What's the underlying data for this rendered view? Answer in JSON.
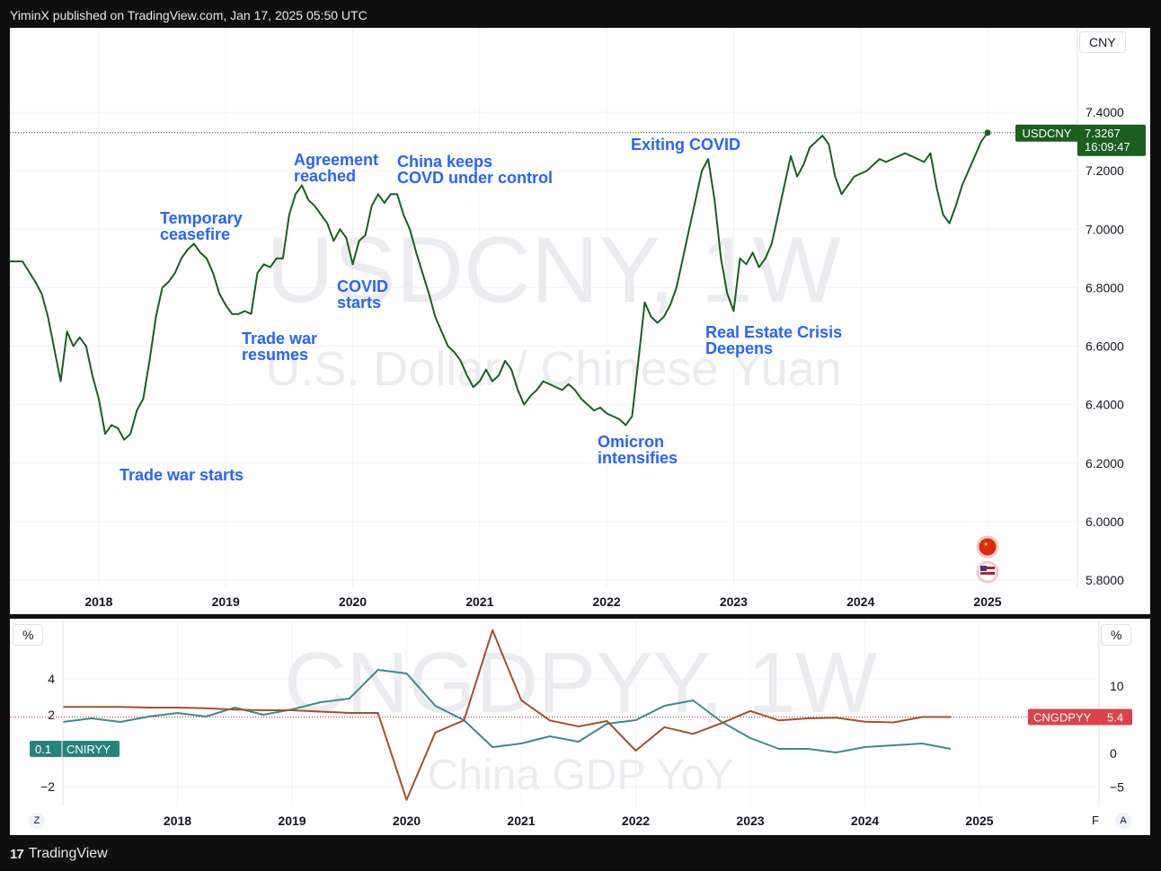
{
  "header": {
    "text": "YiminX published on TradingView.com, Jan 17, 2025 05:50 UTC"
  },
  "footer": {
    "brand": "TradingView",
    "logo_glyph": "17"
  },
  "colors": {
    "usdcny": "#1b5e20",
    "gdp": "#a0522d",
    "cpi": "#3d8a8a",
    "annotation": "#2962ff",
    "grid": "#f0f3fa",
    "watermark": "#d1d4dc"
  },
  "main_chart": {
    "watermark_symbol": "USDCNY, 1W",
    "watermark_desc": "U.S. Dollar / Chinese Yuan",
    "unit_label": "CNY",
    "last_value_label": "USDCNY",
    "last_value": "7.3267",
    "countdown": "16:09:47",
    "y_tick_labels": [
      "7.4000",
      "7.2000",
      "7.0000",
      "6.8000",
      "6.6000",
      "6.4000",
      "6.2000",
      "6.0000",
      "5.8000"
    ],
    "x_tick_labels": [
      "2018",
      "2019",
      "2020",
      "2021",
      "2022",
      "2023",
      "2024",
      "2025"
    ],
    "annotations": [
      [
        "Trade war starts"
      ],
      [
        "Temporary",
        "ceasefire"
      ],
      [
        "Trade war",
        "resumes"
      ],
      [
        "Agreement",
        "reached"
      ],
      [
        "COVID",
        "starts"
      ],
      [
        "China keeps",
        "COVD under control"
      ],
      [
        "Omicron",
        "intensifies"
      ],
      [
        "Exiting COVID"
      ],
      [
        "Real Estate Crisis",
        "Deepens"
      ]
    ],
    "flags": [
      "china-flag-icon",
      "us-flag-icon"
    ]
  },
  "gdp_chart": {
    "watermark_symbol": "CNGDPYY, 1W",
    "watermark_desc": "China GDP YoY",
    "unit_label_left": "%",
    "unit_label_right": "%",
    "left_tick_labels": [
      "4",
      "2",
      "−2"
    ],
    "right_tick_labels": [
      "10",
      "0",
      "−5"
    ],
    "x_tick_labels": [
      "2018",
      "2019",
      "2020",
      "2021",
      "2022",
      "2023",
      "2024",
      "2025"
    ],
    "cpi_label": "CNIRYY",
    "cpi_value": "0.1",
    "gdp_label": "CNGDPYY",
    "gdp_value": "5.4",
    "corner_left": "Z",
    "corner_right": "A",
    "corner_cut": "F"
  },
  "chart_data": [
    {
      "type": "line",
      "title": "USDCNY, 1W",
      "ylabel": "CNY",
      "ylim": [
        5.78,
        7.66
      ],
      "series": [
        {
          "name": "USDCNY",
          "x": [
            2017.3,
            2017.4,
            2017.5,
            2017.55,
            2017.6,
            2017.7,
            2017.75,
            2017.8,
            2017.85,
            2017.9,
            2017.95,
            2018.0,
            2018.05,
            2018.1,
            2018.15,
            2018.2,
            2018.25,
            2018.3,
            2018.35,
            2018.4,
            2018.45,
            2018.5,
            2018.55,
            2018.6,
            2018.65,
            2018.7,
            2018.75,
            2018.8,
            2018.85,
            2018.9,
            2018.95,
            2019.0,
            2019.05,
            2019.1,
            2019.15,
            2019.2,
            2019.25,
            2019.3,
            2019.35,
            2019.4,
            2019.45,
            2019.5,
            2019.55,
            2019.6,
            2019.65,
            2019.7,
            2019.75,
            2019.8,
            2019.85,
            2019.9,
            2019.95,
            2020.0,
            2020.05,
            2020.1,
            2020.15,
            2020.2,
            2020.25,
            2020.3,
            2020.35,
            2020.4,
            2020.45,
            2020.5,
            2020.55,
            2020.6,
            2020.65,
            2020.7,
            2020.75,
            2020.8,
            2020.85,
            2020.9,
            2020.95,
            2021.0,
            2021.05,
            2021.1,
            2021.15,
            2021.2,
            2021.25,
            2021.3,
            2021.35,
            2021.4,
            2021.45,
            2021.5,
            2021.55,
            2021.6,
            2021.65,
            2021.7,
            2021.75,
            2021.8,
            2021.85,
            2021.9,
            2021.95,
            2022.0,
            2022.05,
            2022.1,
            2022.15,
            2022.2,
            2022.25,
            2022.3,
            2022.35,
            2022.4,
            2022.45,
            2022.5,
            2022.55,
            2022.6,
            2022.65,
            2022.7,
            2022.75,
            2022.8,
            2022.85,
            2022.9,
            2022.95,
            2023.0,
            2023.05,
            2023.1,
            2023.15,
            2023.2,
            2023.25,
            2023.3,
            2023.35,
            2023.4,
            2023.45,
            2023.5,
            2023.55,
            2023.6,
            2023.65,
            2023.7,
            2023.75,
            2023.8,
            2023.85,
            2023.9,
            2023.95,
            2024.0,
            2024.05,
            2024.1,
            2024.15,
            2024.2,
            2024.25,
            2024.3,
            2024.35,
            2024.4,
            2024.45,
            2024.5,
            2024.55,
            2024.6,
            2024.65,
            2024.7,
            2024.75,
            2024.8,
            2024.85,
            2024.9,
            2024.95,
            2025.0
          ],
          "values": [
            6.89,
            6.89,
            6.82,
            6.78,
            6.7,
            6.48,
            6.65,
            6.6,
            6.63,
            6.6,
            6.5,
            6.42,
            6.3,
            6.33,
            6.32,
            6.28,
            6.3,
            6.38,
            6.42,
            6.55,
            6.7,
            6.8,
            6.82,
            6.85,
            6.9,
            6.93,
            6.95,
            6.92,
            6.9,
            6.85,
            6.78,
            6.74,
            6.71,
            6.71,
            6.72,
            6.71,
            6.85,
            6.88,
            6.87,
            6.9,
            6.9,
            7.05,
            7.12,
            7.15,
            7.1,
            7.08,
            7.05,
            7.02,
            6.96,
            7.0,
            6.97,
            6.88,
            6.96,
            6.98,
            7.08,
            7.12,
            7.09,
            7.12,
            7.12,
            7.05,
            7.0,
            6.92,
            6.85,
            6.78,
            6.7,
            6.65,
            6.6,
            6.58,
            6.55,
            6.5,
            6.46,
            6.48,
            6.52,
            6.48,
            6.5,
            6.55,
            6.52,
            6.45,
            6.4,
            6.43,
            6.45,
            6.48,
            6.47,
            6.46,
            6.45,
            6.47,
            6.45,
            6.42,
            6.4,
            6.38,
            6.39,
            6.37,
            6.36,
            6.35,
            6.33,
            6.36,
            6.55,
            6.75,
            6.7,
            6.68,
            6.7,
            6.74,
            6.8,
            6.9,
            7.0,
            7.1,
            7.2,
            7.24,
            7.1,
            6.9,
            6.78,
            6.72,
            6.9,
            6.88,
            6.92,
            6.87,
            6.9,
            6.95,
            7.05,
            7.15,
            7.25,
            7.18,
            7.22,
            7.28,
            7.3,
            7.32,
            7.29,
            7.18,
            7.12,
            7.15,
            7.18,
            7.19,
            7.2,
            7.22,
            7.24,
            7.23,
            7.24,
            7.25,
            7.26,
            7.25,
            7.24,
            7.23,
            7.26,
            7.14,
            7.05,
            7.02,
            7.08,
            7.15,
            7.2,
            7.25,
            7.3,
            7.33
          ]
        }
      ]
    },
    {
      "type": "line",
      "title": "CNGDPYY, 1W",
      "ylabel": "%",
      "series": [
        {
          "name": "CNGDPYY",
          "axis": "right",
          "ylim": [
            -7.5,
            15
          ],
          "x": [
            2017.0,
            2017.25,
            2017.5,
            2017.75,
            2018.0,
            2018.25,
            2018.5,
            2018.75,
            2019.0,
            2019.25,
            2019.5,
            2019.75,
            2020.0,
            2020.25,
            2020.5,
            2020.75,
            2021.0,
            2021.25,
            2021.5,
            2021.75,
            2022.0,
            2022.25,
            2022.5,
            2022.75,
            2023.0,
            2023.25,
            2023.5,
            2023.75,
            2024.0,
            2024.25,
            2024.5,
            2024.75
          ],
          "values": [
            6.9,
            6.9,
            6.9,
            6.8,
            6.8,
            6.7,
            6.5,
            6.4,
            6.4,
            6.2,
            6.0,
            6.0,
            -6.9,
            3.1,
            4.9,
            18.3,
            7.9,
            4.9,
            4.0,
            4.8,
            0.4,
            3.9,
            2.9,
            4.5,
            6.3,
            4.9,
            5.2,
            5.3,
            4.7,
            4.6,
            5.4,
            5.4
          ]
        },
        {
          "name": "CNIRYY",
          "axis": "left",
          "ylim": [
            -2.6,
            5.5
          ],
          "x": [
            2017.0,
            2017.25,
            2017.5,
            2017.75,
            2018.0,
            2018.25,
            2018.5,
            2018.75,
            2019.0,
            2019.25,
            2019.5,
            2019.75,
            2020.0,
            2020.25,
            2020.5,
            2020.75,
            2021.0,
            2021.25,
            2021.5,
            2021.75,
            2022.0,
            2022.25,
            2022.5,
            2022.75,
            2023.0,
            2023.25,
            2023.5,
            2023.75,
            2024.0,
            2024.25,
            2024.5,
            2024.75
          ],
          "values": [
            1.6,
            1.8,
            1.6,
            1.9,
            2.1,
            1.9,
            2.4,
            2.0,
            2.3,
            2.7,
            2.9,
            4.5,
            4.3,
            2.5,
            1.7,
            0.2,
            0.4,
            0.8,
            0.5,
            1.5,
            1.7,
            2.5,
            2.8,
            1.6,
            0.7,
            0.1,
            0.1,
            -0.1,
            0.2,
            0.3,
            0.4,
            0.1
          ]
        }
      ]
    }
  ]
}
